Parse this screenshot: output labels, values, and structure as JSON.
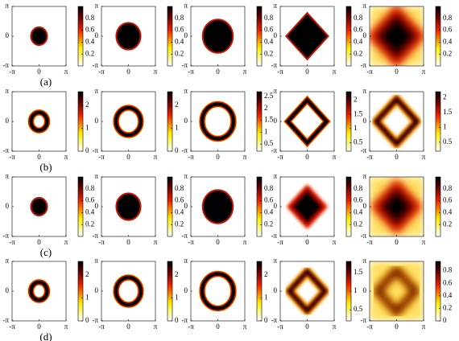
{
  "axes": {
    "xlim": [
      -3.14159,
      3.14159
    ],
    "ylim": [
      -3.14159,
      3.14159
    ],
    "xticks": [
      {
        "value": -3.14159,
        "label": "-π"
      },
      0,
      {
        "value": 3.14159,
        "label": "π"
      }
    ],
    "yticks": [
      {
        "value": -3.14159,
        "label": "-π"
      },
      0,
      {
        "value": 3.14159,
        "label": "π"
      }
    ]
  },
  "rows": [
    {
      "label": "(a)",
      "panels": [
        {
          "clim": [
            0,
            1
          ],
          "cticks": [
            0.2,
            0.4,
            0.6,
            0.8
          ]
        },
        {
          "clim": [
            0,
            1
          ],
          "cticks": [
            0.2,
            0.4,
            0.6,
            0.8
          ]
        },
        {
          "clim": [
            0,
            1
          ],
          "cticks": [
            0.2,
            0.4,
            0.6,
            0.8
          ]
        },
        {
          "clim": [
            0,
            1
          ],
          "cticks": [
            0.2,
            0.4,
            0.6,
            0.8
          ]
        },
        {
          "clim": [
            0,
            1
          ],
          "cticks": [
            0.2,
            0.4,
            0.6,
            0.8
          ]
        }
      ]
    },
    {
      "label": "(b)",
      "panels": [
        {
          "clim": [
            0,
            2.6
          ],
          "cticks": [
            0,
            1,
            2
          ]
        },
        {
          "clim": [
            0,
            2.6
          ],
          "cticks": [
            0,
            1,
            2
          ]
        },
        {
          "clim": [
            0.2,
            2.7
          ],
          "cticks": [
            0.5,
            1,
            1.5,
            2,
            2.5
          ]
        },
        {
          "clim": [
            0.2,
            2.3
          ],
          "cticks": [
            0.5,
            1,
            1.5,
            2
          ]
        },
        {
          "clim": [
            0.2,
            2.2
          ],
          "cticks": [
            0.5,
            1,
            1.5,
            2
          ]
        }
      ]
    },
    {
      "label": "(c)",
      "panels": [
        {
          "clim": [
            0,
            1
          ],
          "cticks": [
            0.2,
            0.4,
            0.6,
            0.8
          ]
        },
        {
          "clim": [
            0,
            1
          ],
          "cticks": [
            0.2,
            0.4,
            0.6,
            0.8
          ]
        },
        {
          "clim": [
            0,
            1
          ],
          "cticks": [
            0.2,
            0.4,
            0.6,
            0.8
          ]
        },
        {
          "clim": [
            0,
            1
          ],
          "cticks": [
            0.2,
            0.4,
            0.6,
            0.8
          ]
        },
        {
          "clim": [
            0,
            1
          ],
          "cticks": [
            0.2,
            0.4,
            0.6,
            0.8
          ]
        }
      ]
    },
    {
      "label": "(d)",
      "panels": [
        {
          "clim": [
            0,
            2.6
          ],
          "cticks": [
            0,
            1,
            2
          ]
        },
        {
          "clim": [
            0,
            2.6
          ],
          "cticks": [
            0,
            1,
            2
          ]
        },
        {
          "clim": [
            0,
            2.6
          ],
          "cticks": [
            0,
            1,
            2
          ]
        },
        {
          "clim": [
            0.2,
            1.8
          ],
          "cticks": [
            0.5,
            1,
            1.5
          ]
        },
        {
          "clim": [
            0,
            0.95
          ],
          "cticks": [
            0,
            0.2,
            0.4,
            0.6,
            0.8
          ]
        }
      ]
    }
  ]
}
